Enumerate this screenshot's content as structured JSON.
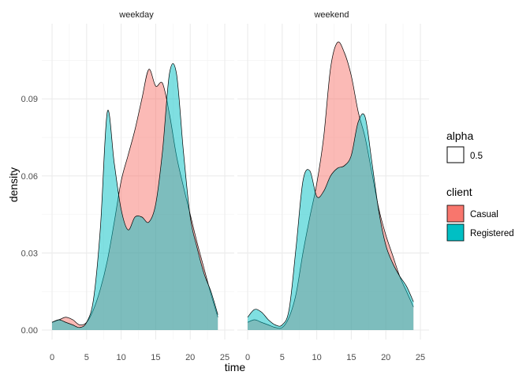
{
  "chart_data": {
    "type": "area",
    "title": "",
    "xlabel": "time",
    "ylabel": "density",
    "xlim": [
      0,
      25
    ],
    "ylim": [
      0,
      0.115
    ],
    "x_ticks": [
      "0",
      "5",
      "10",
      "15",
      "20",
      "25"
    ],
    "x_tick_values": [
      0,
      5,
      10,
      15,
      20,
      25
    ],
    "y_ticks": [
      "0.00",
      "0.03",
      "0.06",
      "0.09"
    ],
    "y_tick_values": [
      0,
      0.03,
      0.06,
      0.09
    ],
    "grid": true,
    "legend_position": "right",
    "facets": [
      "weekday",
      "weekend"
    ],
    "x": [
      0,
      1,
      2,
      3,
      4,
      5,
      6,
      7,
      8,
      9,
      10,
      11,
      12,
      13,
      14,
      15,
      16,
      17,
      18,
      19,
      20,
      21,
      22,
      23,
      24
    ],
    "panels": [
      {
        "facet": "weekday",
        "series": [
          {
            "name": "Casual",
            "values": [
              0.003,
              0.004,
              0.005,
              0.004,
              0.002,
              0.003,
              0.008,
              0.016,
              0.027,
              0.042,
              0.058,
              0.068,
              0.078,
              0.09,
              0.1015,
              0.095,
              0.096,
              0.084,
              0.068,
              0.056,
              0.045,
              0.034,
              0.024,
              0.014,
              0.005
            ]
          },
          {
            "name": "Registered",
            "values": [
              0.003,
              0.004,
              0.003,
              0.002,
              0.001,
              0.003,
              0.012,
              0.04,
              0.085,
              0.065,
              0.047,
              0.039,
              0.044,
              0.044,
              0.042,
              0.049,
              0.07,
              0.1,
              0.1,
              0.07,
              0.044,
              0.032,
              0.022,
              0.015,
              0.006
            ]
          }
        ]
      },
      {
        "facet": "weekend",
        "series": [
          {
            "name": "Casual",
            "values": [
              0.003,
              0.004,
              0.003,
              0.002,
              0.001,
              0.001,
              0.005,
              0.014,
              0.03,
              0.044,
              0.057,
              0.075,
              0.102,
              0.112,
              0.108,
              0.099,
              0.085,
              0.075,
              0.061,
              0.047,
              0.037,
              0.029,
              0.021,
              0.015,
              0.009
            ]
          },
          {
            "name": "Registered",
            "values": [
              0.005,
              0.008,
              0.007,
              0.004,
              0.002,
              0.002,
              0.008,
              0.032,
              0.058,
              0.062,
              0.052,
              0.054,
              0.06,
              0.063,
              0.064,
              0.068,
              0.081,
              0.083,
              0.065,
              0.046,
              0.033,
              0.026,
              0.021,
              0.017,
              0.011
            ]
          }
        ]
      }
    ],
    "colors": {
      "Casual": "#f8766d",
      "Registered": "#00bfc4"
    },
    "fill_opacity": 0.5
  },
  "legend": {
    "alpha": {
      "title": "alpha",
      "items": [
        {
          "label": "0.5"
        }
      ]
    },
    "client": {
      "title": "client",
      "items": [
        {
          "label": "Casual",
          "color": "#f8766d"
        },
        {
          "label": "Registered",
          "color": "#00bfc4"
        }
      ]
    }
  }
}
